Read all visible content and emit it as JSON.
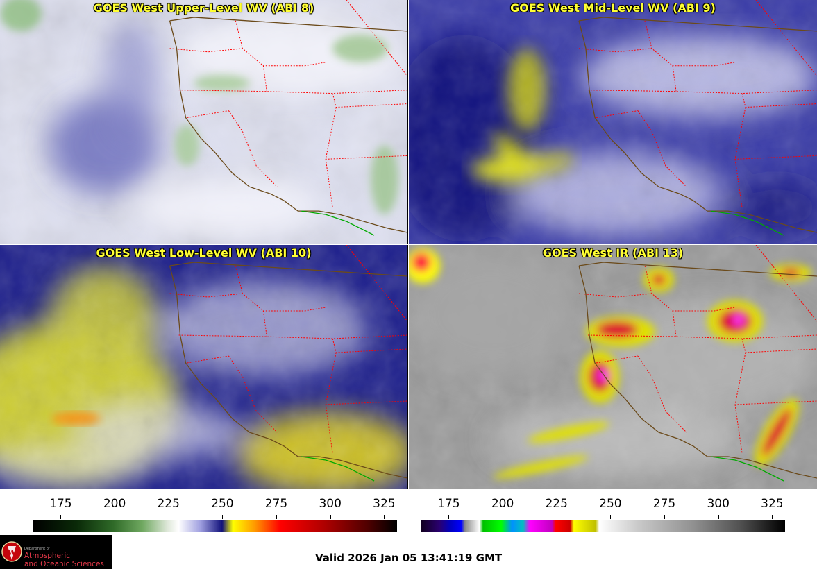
{
  "panels": [
    {
      "title": "GOES West Upper-Level WV (ABI 8)",
      "product": "upper-level-water-vapor"
    },
    {
      "title": "GOES West Mid-Level WV (ABI 9)",
      "product": "mid-level-water-vapor"
    },
    {
      "title": "GOES West Low-Level WV (ABI 10)",
      "product": "low-level-water-vapor"
    },
    {
      "title": "GOES West IR (ABI 13)",
      "product": "infrared"
    }
  ],
  "colorbars": [
    {
      "ticks": [
        "175",
        "200",
        "225",
        "250",
        "275",
        "300",
        "325"
      ],
      "range": [
        162,
        331
      ]
    },
    {
      "ticks": [
        "175",
        "200",
        "225",
        "250",
        "275",
        "300",
        "325"
      ],
      "range": [
        162,
        331
      ]
    }
  ],
  "logo": {
    "dept": "Department of",
    "line1": "Atmospheric",
    "line2": "and Oceanic Sciences",
    "icon": "uw-seal-icon"
  },
  "valid_time": "Valid 2026 Jan 05 13:41:19 GMT",
  "colors": {
    "title": "#ffff33",
    "state_border": "#ff0000",
    "coastline": "#6b4a1a",
    "mexico_border": "#00aa00",
    "logo_text": "#e6394a"
  }
}
